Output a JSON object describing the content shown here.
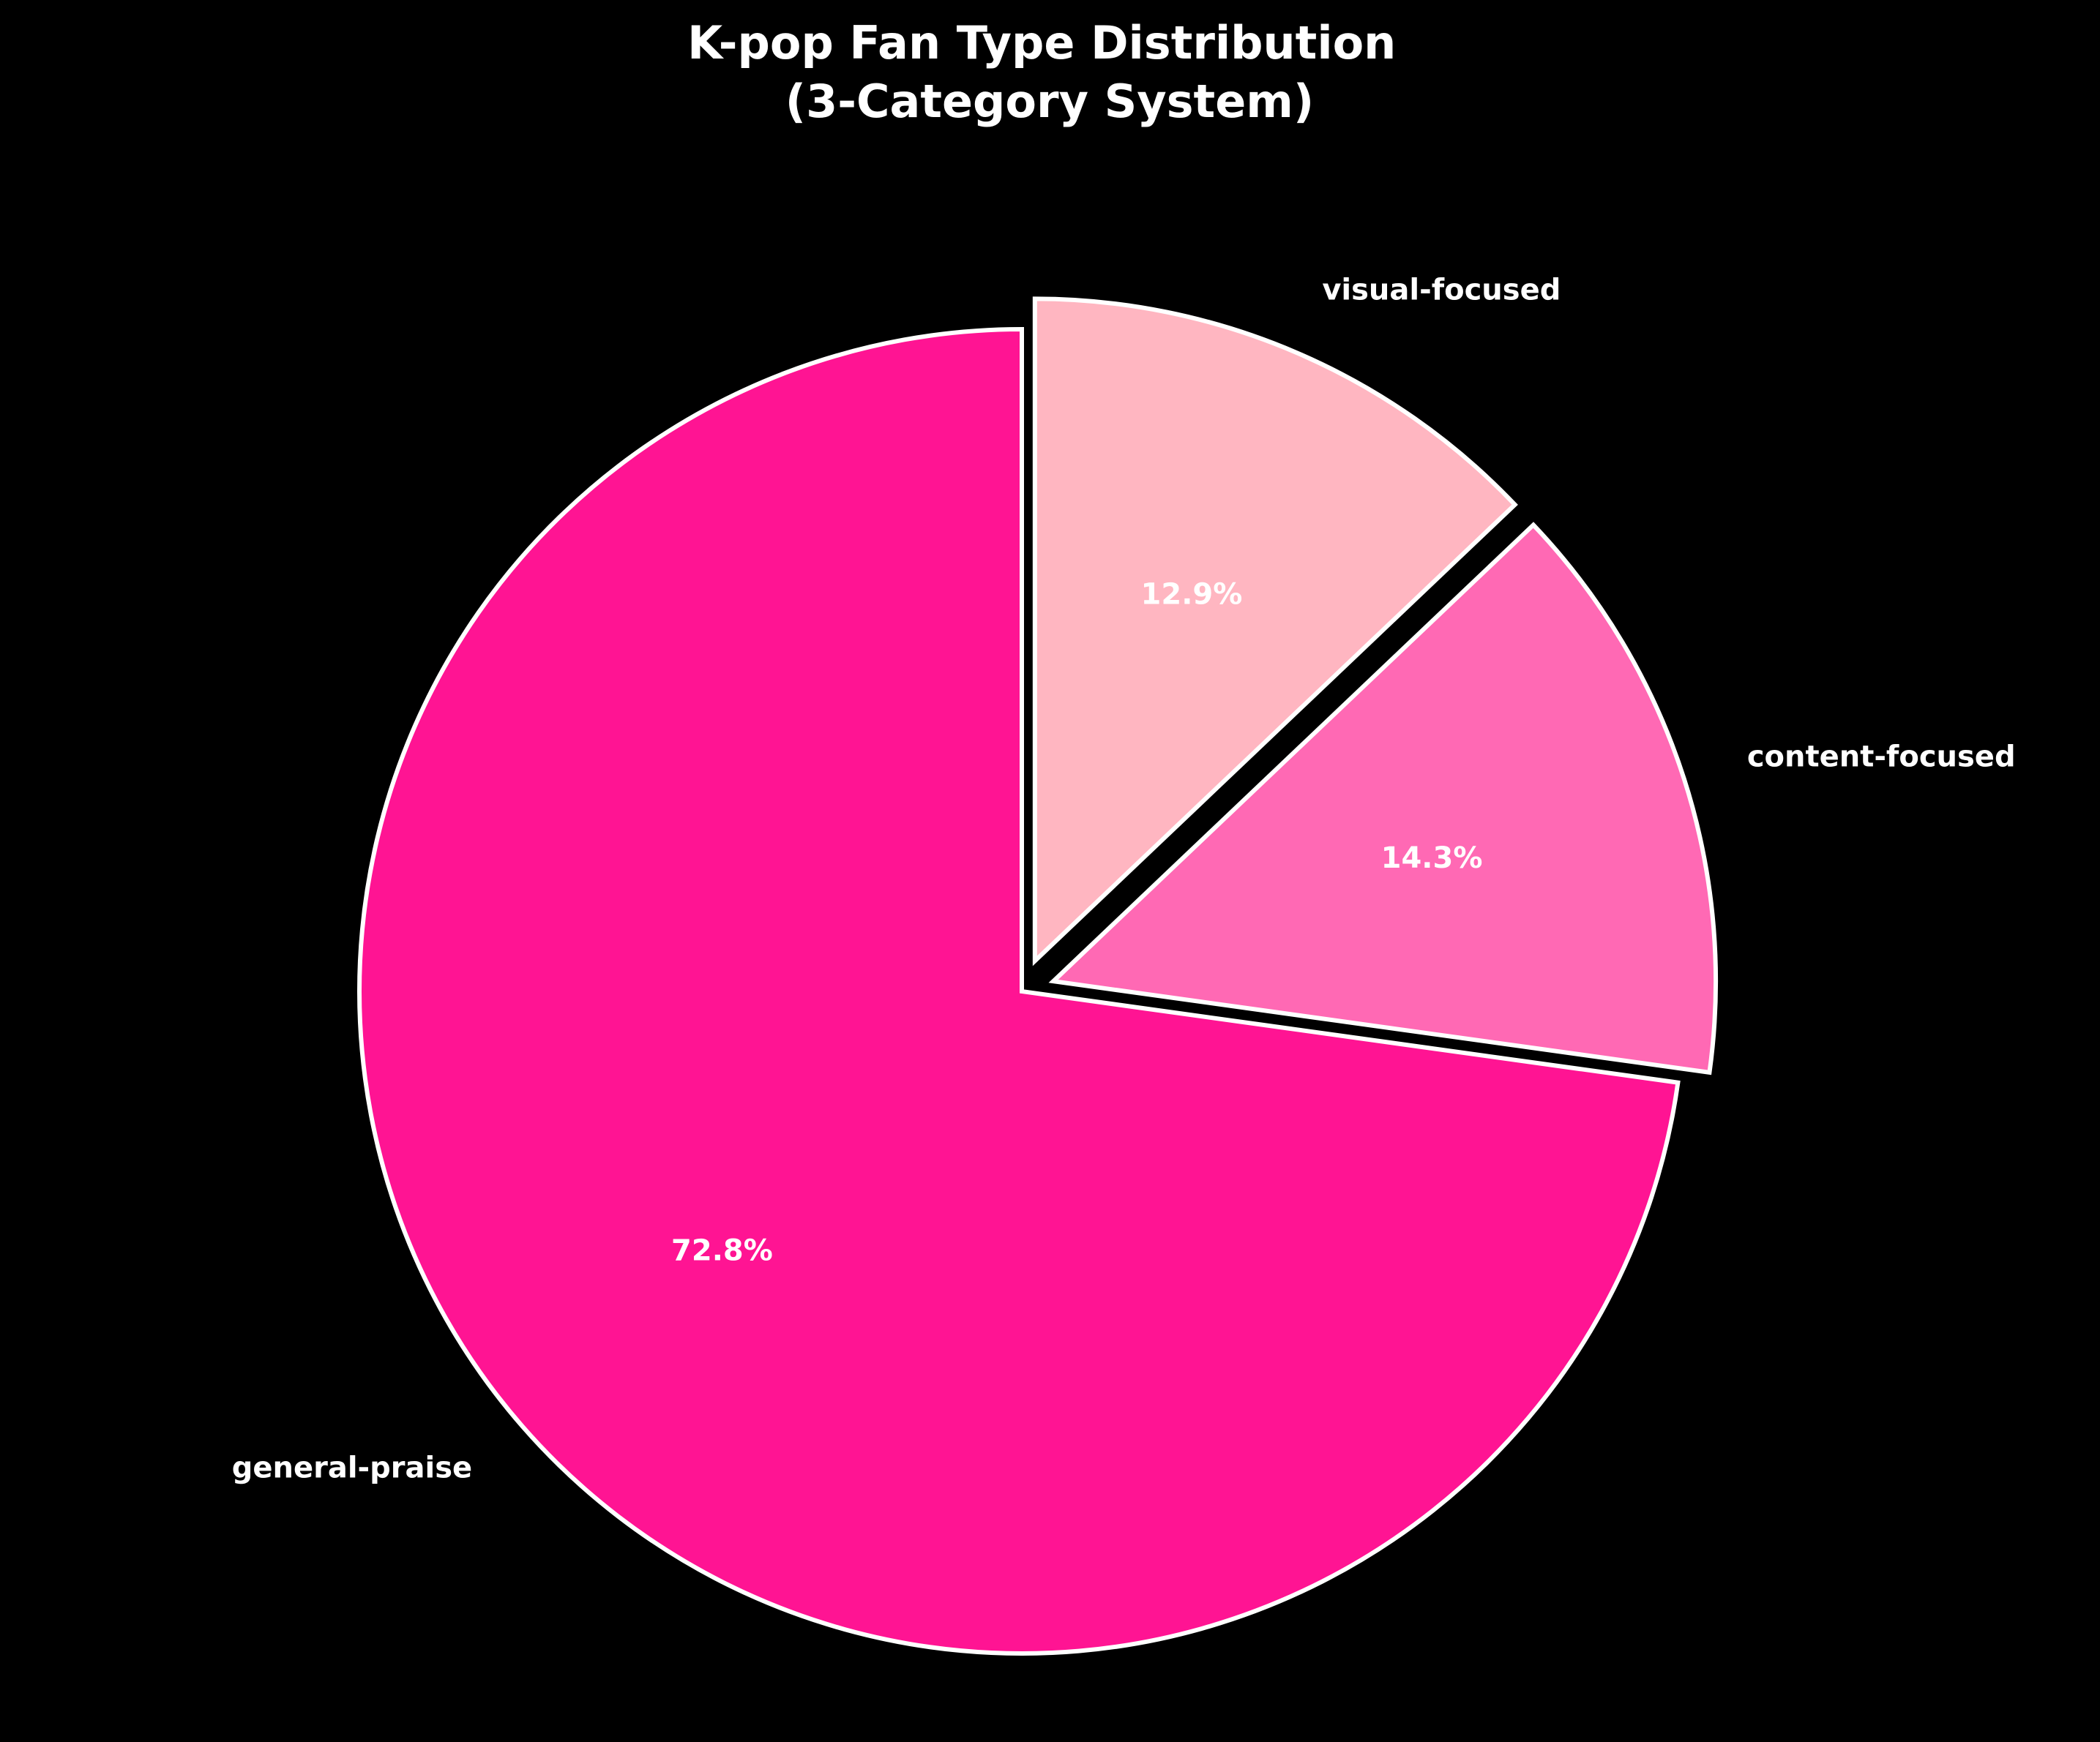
{
  "chart_data": {
    "type": "pie",
    "title": "K-pop Fan Type Distribution\n(3-Category System)",
    "title_lines": [
      "K-pop Fan Type Distribution",
      "(3-Category System)"
    ],
    "categories": [
      "general-praise",
      "content-focused",
      "visual-focused"
    ],
    "values": [
      72.8,
      14.3,
      12.9
    ],
    "percent_labels": [
      "72.8%",
      "14.3%",
      "12.9%"
    ],
    "colors": [
      "#FF1493",
      "#FF69B4",
      "#FFB6C1"
    ],
    "exploded": [
      false,
      true,
      true
    ],
    "start_angle": 90,
    "direction": "counterclockwise",
    "edge_color": "#FFFFFF",
    "background": "#000000",
    "text_color": "#FFFFFF",
    "legend": "none"
  }
}
